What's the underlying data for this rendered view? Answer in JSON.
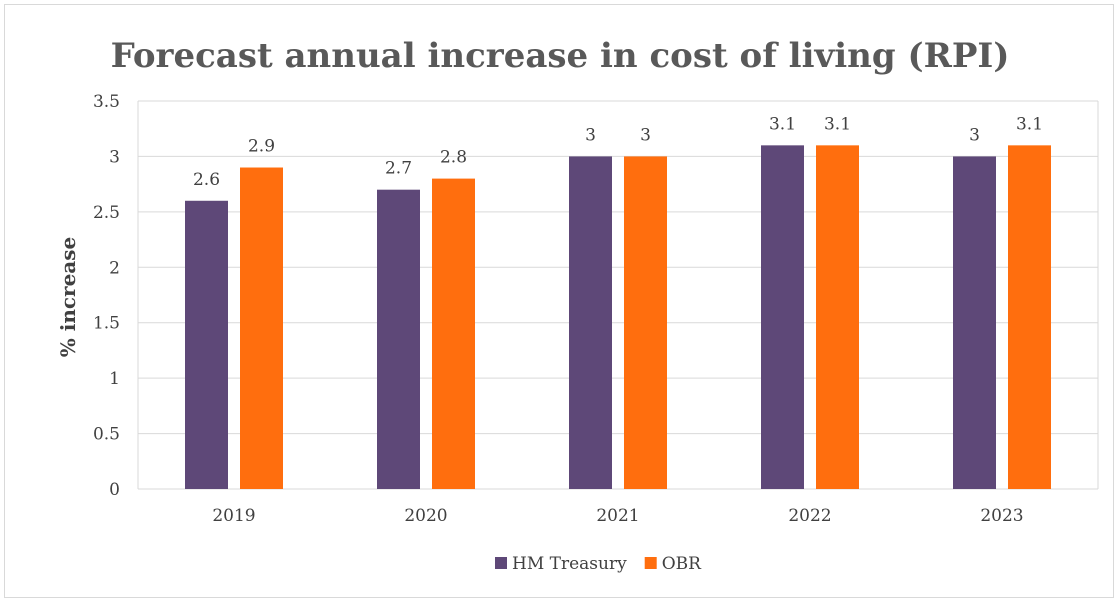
{
  "chart_data": {
    "type": "bar",
    "title": "Forecast annual increase in cost of living (RPI)",
    "xlabel": "",
    "ylabel": "% increase",
    "categories": [
      "2019",
      "2020",
      "2021",
      "2022",
      "2023"
    ],
    "series": [
      {
        "name": "HM Treasury",
        "values": [
          2.6,
          2.7,
          3,
          3.1,
          3
        ],
        "color": "#5e4878"
      },
      {
        "name": "OBR",
        "values": [
          2.9,
          2.8,
          3,
          3.1,
          3.1
        ],
        "color": "#ff6e0e"
      }
    ],
    "ylim": [
      0,
      3.5
    ],
    "yticks": [
      "0",
      "0.5",
      "1",
      "1.5",
      "2",
      "2.5",
      "3",
      "3.5"
    ],
    "grid": true,
    "legend_position": "bottom"
  }
}
